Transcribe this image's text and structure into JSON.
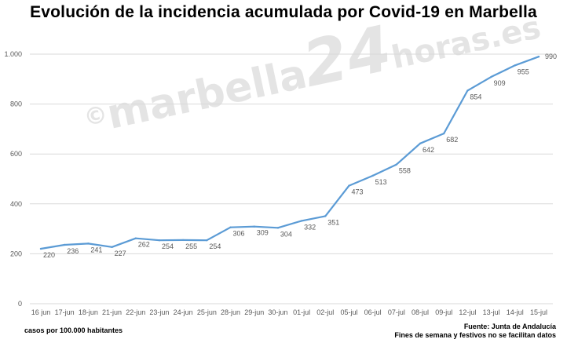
{
  "title": "Evolución de la incidencia acumulada por Covid-19 en Marbella",
  "footnote_left": "casos por 100.000 habitantes",
  "footnote_right_1": "Fuente: Junta de Andalucía",
  "footnote_right_2": "Fines de semana y festivos no se facilitan datos",
  "watermark": {
    "copyright": "©",
    "brand": "marbella",
    "number": "24",
    "tail": "horas.es"
  },
  "colors": {
    "line": "#5b9bd5",
    "grid": "#d9d9d9",
    "text": "#595959"
  },
  "chart_data": {
    "type": "line",
    "title": "Evolución de la incidencia acumulada por Covid-19 en Marbella",
    "xlabel": "",
    "ylabel": "",
    "ylim": [
      0,
      1000
    ],
    "yticks": [
      0,
      200,
      400,
      600,
      800,
      1000
    ],
    "ytick_labels": [
      "0",
      "200",
      "400",
      "600",
      "800",
      "1.000"
    ],
    "grid": true,
    "categories": [
      "16 jun",
      "17-jun",
      "18-jun",
      "21-jun",
      "22-jun",
      "23-jun",
      "24-jun",
      "25-jun",
      "28-jun",
      "29-jun",
      "30-jun",
      "01-jul",
      "02-jul",
      "05-jul",
      "06-jul",
      "07-jul",
      "08-jul",
      "09-jul",
      "12-jul",
      "13-jul",
      "14-jul",
      "15-jul"
    ],
    "values": [
      220,
      236,
      241,
      227,
      262,
      254,
      255,
      254,
      306,
      309,
      304,
      332,
      351,
      473,
      513,
      558,
      642,
      682,
      854,
      909,
      955,
      990
    ],
    "data_labels": [
      "220",
      "236",
      "241",
      "227",
      "262",
      "254",
      "255",
      "254",
      "306",
      "309",
      "304",
      "332",
      "351",
      "473",
      "513",
      "558",
      "642",
      "682",
      "854",
      "909",
      "955",
      "990"
    ]
  }
}
